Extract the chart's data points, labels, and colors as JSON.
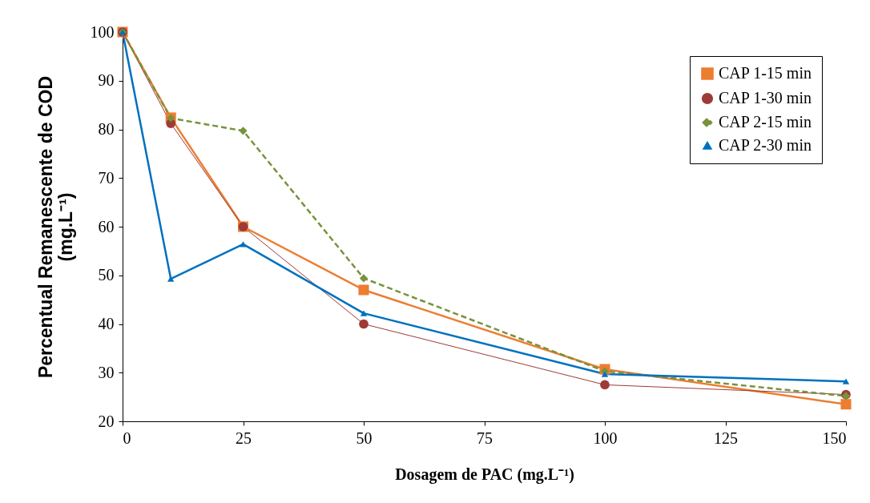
{
  "chart_data": {
    "type": "line",
    "xlabel": "Dosagem de PAC (mg.L⁻¹)",
    "ylabel": "Percentual Remanescente de COD\n(mg.L⁻¹)",
    "x": [
      0,
      10,
      25,
      50,
      100,
      150
    ],
    "series": [
      {
        "name": "CAP 1-15 min",
        "color": "#ed7d31",
        "marker": "square",
        "line_style": "solid",
        "values": [
          100,
          82.4,
          60,
          47,
          30.7,
          23.5
        ]
      },
      {
        "name": "CAP 1-30 min",
        "color": "#9e3b37",
        "marker": "circle",
        "line_style": "solid",
        "values": [
          100,
          81.2,
          60,
          40,
          27.5,
          25.5
        ]
      },
      {
        "name": "CAP 2-15 min",
        "color": "#77933c",
        "marker": "diamond",
        "line_style": "dashed",
        "values": [
          100,
          82.3,
          79.7,
          49.4,
          30.3,
          25.2
        ]
      },
      {
        "name": "CAP 2-30 min",
        "color": "#0070c0",
        "marker": "triangle",
        "line_style": "solid",
        "values": [
          100,
          49.3,
          56.4,
          42.2,
          29.7,
          28.2
        ]
      }
    ],
    "xlim": [
      0,
      150
    ],
    "xticks": [
      0,
      25,
      50,
      75,
      100,
      125,
      150
    ],
    "ylim": [
      20,
      100
    ],
    "yticks": [
      20,
      30,
      40,
      50,
      60,
      70,
      80,
      90,
      100
    ],
    "grid": false,
    "legend": "top right"
  }
}
